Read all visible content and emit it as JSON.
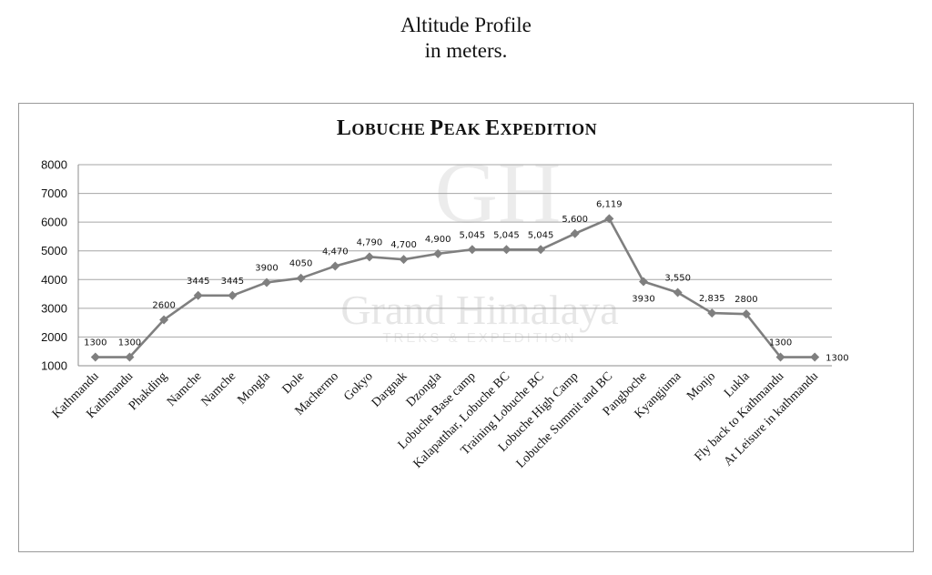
{
  "page": {
    "header_line1": "Altitude Profile",
    "header_line2": "in meters."
  },
  "watermark": {
    "monogram": "GH",
    "brand": "Grand Himalaya",
    "tagline": "TREKS & EXPEDITION"
  },
  "colors": {
    "line": "#7f7f7f",
    "marker": "#7f7f7f",
    "grid": "#a6a6a6",
    "axis": "#8c8c8c",
    "text": "#111111",
    "watermark": "#d9d9d9"
  },
  "chart_data": {
    "type": "line",
    "title": "Lobuche Peak Expedition",
    "xlabel": "",
    "ylabel": "",
    "ylim": [
      1000,
      8000
    ],
    "yticks": [
      1000,
      2000,
      3000,
      4000,
      5000,
      6000,
      7000,
      8000
    ],
    "ytick_labels": [
      "1000",
      "2000",
      "3000",
      "4000",
      "5000",
      "6000",
      "7000",
      "8000"
    ],
    "grid": true,
    "legend": "none",
    "categories": [
      "Kathmandu",
      "Kathmandu",
      "Phakding",
      "Namche",
      "Namche",
      "Mongla",
      "Dole",
      "Machermo",
      "Gokyo",
      "Dargnak",
      "Dzongla",
      "Lobuche Base camp",
      "Kalapatthar, Lobuche BC",
      "Training Lobuche BC",
      "Lobuche High Camp",
      "Lobuche Summit and BC",
      "Pangboche",
      "Kyangjuma",
      "Monjo",
      "Lukla",
      "Fly back to Kathmandu",
      "At Leisure in kathmandu"
    ],
    "series": [
      {
        "values": [
          1300,
          1300,
          2600,
          3445,
          3445,
          3900,
          4050,
          4470,
          4790,
          4700,
          4900,
          5045,
          5045,
          5045,
          5600,
          6119,
          3930,
          3550,
          2835,
          2800,
          1300,
          1300
        ],
        "data_labels": [
          "1300",
          "1300",
          "2600",
          "3445",
          "3445",
          "3900",
          "4050",
          "4,470",
          "4,790",
          "4,700",
          "4,900",
          "5,045",
          "5,045",
          "5,045",
          "5,600",
          "6,119",
          "3930",
          "3,550",
          "2,835",
          "2800",
          "1300",
          "1300"
        ],
        "label_position": [
          "above",
          "above",
          "above",
          "above",
          "above",
          "above",
          "above",
          "above",
          "above",
          "above",
          "above",
          "above",
          "above",
          "above",
          "above",
          "above",
          "below",
          "above",
          "above",
          "above",
          "above",
          "right"
        ]
      }
    ]
  }
}
